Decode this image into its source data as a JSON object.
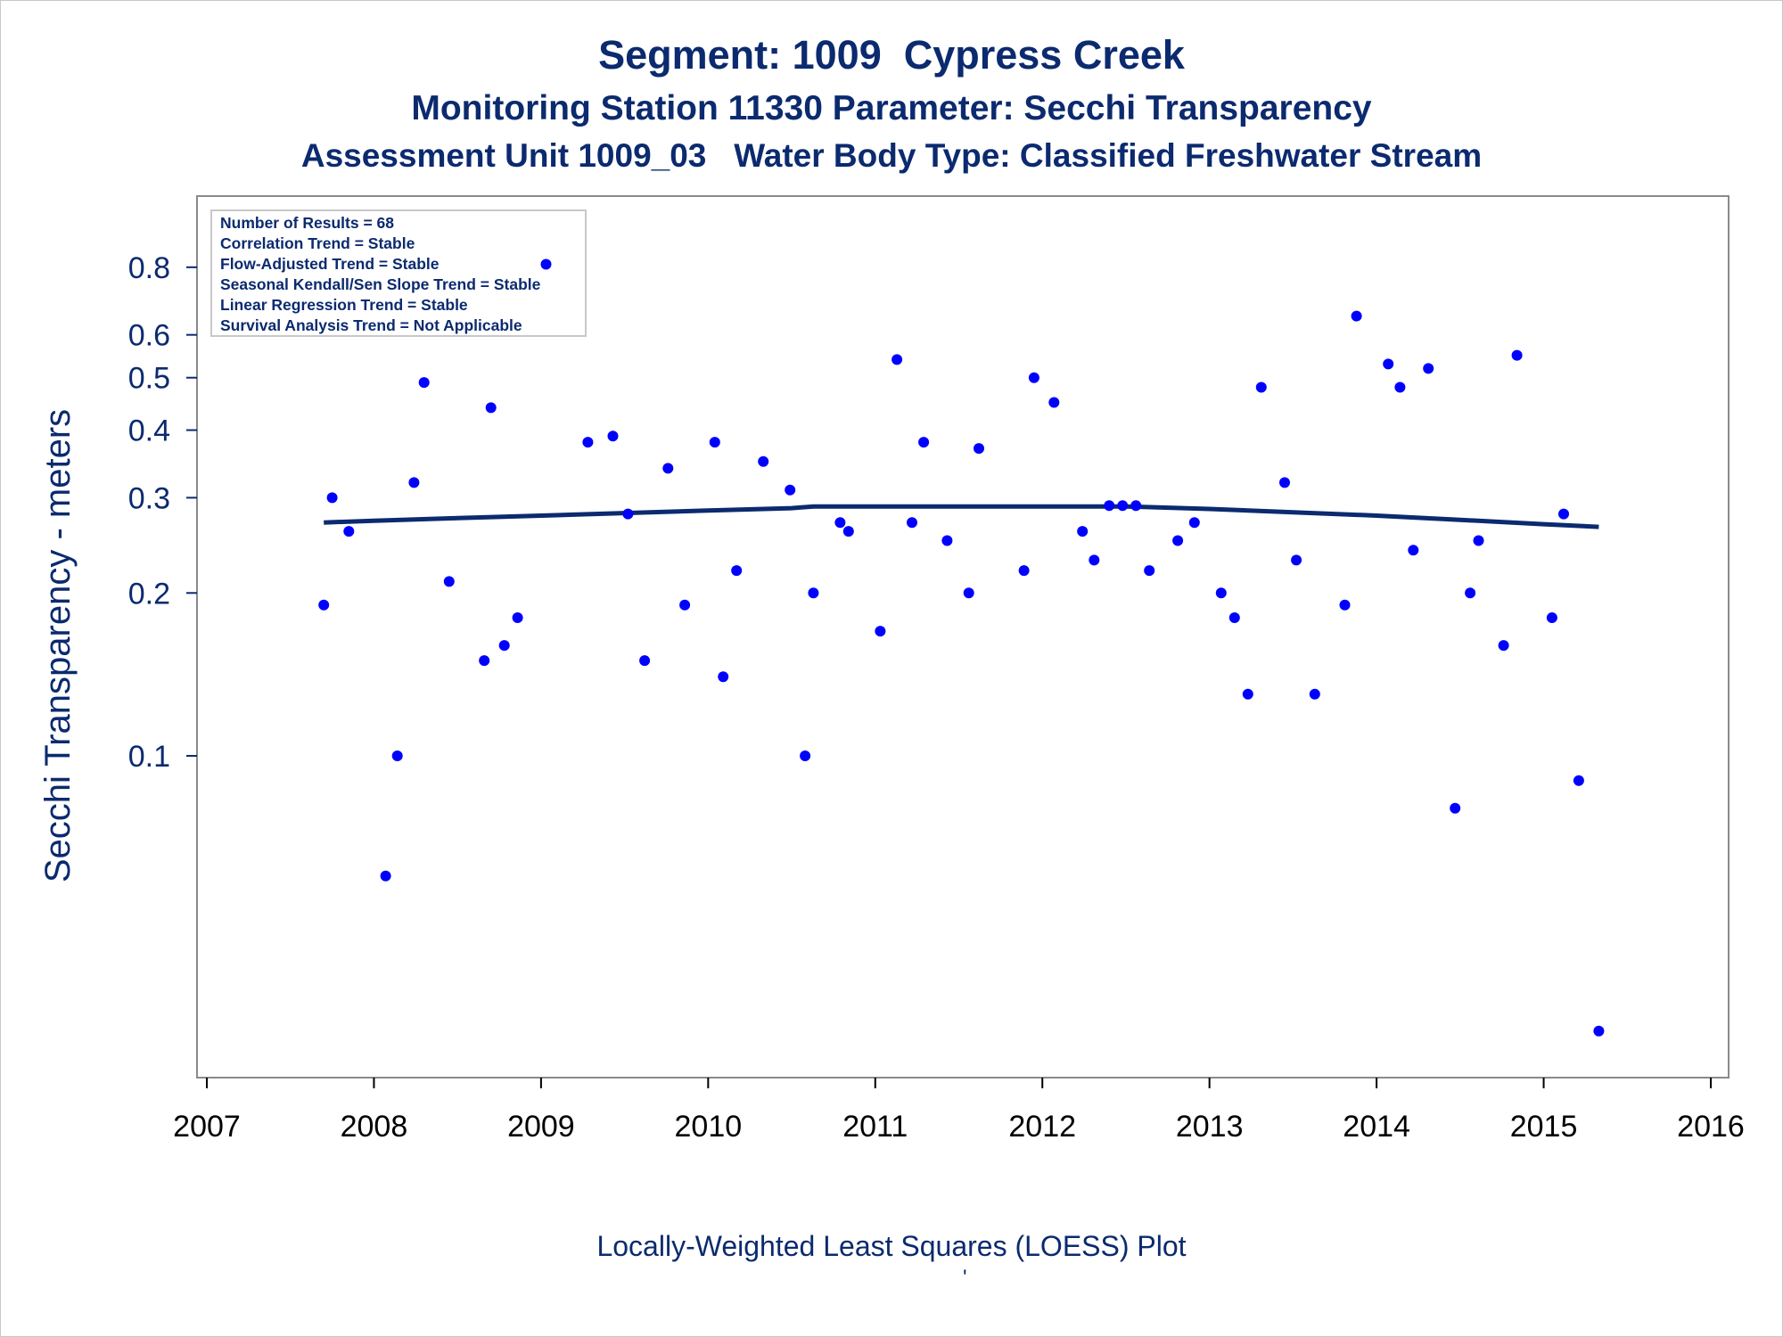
{
  "titles": {
    "line1": "Segment: 1009  Cypress Creek",
    "line2": "Monitoring Station 11330 Parameter: Secchi Transparency",
    "line3": "Assessment Unit 1009_03   Water Body Type: Classified Freshwater Stream"
  },
  "footer": {
    "caption": "Locally-Weighted Least Squares (LOESS) Plot",
    "mark": "'"
  },
  "chart_data": {
    "type": "scatter",
    "ylabel": "Secchi Transparency - meters",
    "xlabel": "",
    "x_ticks": [
      "2007",
      "2008",
      "2009",
      "2010",
      "2011",
      "2012",
      "2013",
      "2014",
      "2015",
      "2016"
    ],
    "xlim": [
      2007,
      2016
    ],
    "y_scale": "log",
    "ylim": [
      0.03,
      0.85
    ],
    "y_ticks": [
      {
        "value": 0.1,
        "label": "0.1"
      },
      {
        "value": 0.2,
        "label": "0.2"
      },
      {
        "value": 0.3,
        "label": "0.3"
      },
      {
        "value": 0.4,
        "label": "0.4"
      },
      {
        "value": 0.5,
        "label": "0.5"
      },
      {
        "value": 0.6,
        "label": "0.6"
      },
      {
        "value": 0.8,
        "label": "0.8"
      }
    ],
    "grid": false,
    "marker_color": "#0000ff",
    "line_color": "#0b2a6f",
    "stats_box": {
      "placement": "top-left",
      "lines": [
        "Number of Results = 68",
        "Correlation Trend = Stable",
        "Flow-Adjusted Trend = Stable",
        "Seasonal Kendall/Sen Slope Trend = Stable",
        "Linear Regression Trend = Stable",
        "Survival Analysis Trend = Not Applicable"
      ]
    },
    "points": [
      {
        "x": 2007.7,
        "y": 0.19
      },
      {
        "x": 2007.75,
        "y": 0.3
      },
      {
        "x": 2007.85,
        "y": 0.26
      },
      {
        "x": 2008.07,
        "y": 0.06
      },
      {
        "x": 2008.14,
        "y": 0.1
      },
      {
        "x": 2008.24,
        "y": 0.32
      },
      {
        "x": 2008.3,
        "y": 0.49
      },
      {
        "x": 2008.45,
        "y": 0.21
      },
      {
        "x": 2008.66,
        "y": 0.15
      },
      {
        "x": 2008.7,
        "y": 0.44
      },
      {
        "x": 2008.78,
        "y": 0.16
      },
      {
        "x": 2008.86,
        "y": 0.18
      },
      {
        "x": 2009.03,
        "y": 0.81
      },
      {
        "x": 2009.28,
        "y": 0.38
      },
      {
        "x": 2009.43,
        "y": 0.39
      },
      {
        "x": 2009.52,
        "y": 0.28
      },
      {
        "x": 2009.62,
        "y": 0.15
      },
      {
        "x": 2009.76,
        "y": 0.34
      },
      {
        "x": 2009.86,
        "y": 0.19
      },
      {
        "x": 2010.04,
        "y": 0.38
      },
      {
        "x": 2010.09,
        "y": 0.14
      },
      {
        "x": 2010.17,
        "y": 0.22
      },
      {
        "x": 2010.33,
        "y": 0.35
      },
      {
        "x": 2010.49,
        "y": 0.31
      },
      {
        "x": 2010.58,
        "y": 0.1
      },
      {
        "x": 2010.63,
        "y": 0.2
      },
      {
        "x": 2010.79,
        "y": 0.27
      },
      {
        "x": 2010.84,
        "y": 0.26
      },
      {
        "x": 2011.03,
        "y": 0.17
      },
      {
        "x": 2011.13,
        "y": 0.54
      },
      {
        "x": 2011.22,
        "y": 0.27
      },
      {
        "x": 2011.29,
        "y": 0.38
      },
      {
        "x": 2011.43,
        "y": 0.25
      },
      {
        "x": 2011.56,
        "y": 0.2
      },
      {
        "x": 2011.62,
        "y": 0.37
      },
      {
        "x": 2011.89,
        "y": 0.22
      },
      {
        "x": 2011.95,
        "y": 0.5
      },
      {
        "x": 2012.07,
        "y": 0.45
      },
      {
        "x": 2012.24,
        "y": 0.26
      },
      {
        "x": 2012.31,
        "y": 0.23
      },
      {
        "x": 2012.4,
        "y": 0.29
      },
      {
        "x": 2012.48,
        "y": 0.29
      },
      {
        "x": 2012.56,
        "y": 0.29
      },
      {
        "x": 2012.64,
        "y": 0.22
      },
      {
        "x": 2012.81,
        "y": 0.25
      },
      {
        "x": 2012.91,
        "y": 0.27
      },
      {
        "x": 2013.07,
        "y": 0.2
      },
      {
        "x": 2013.15,
        "y": 0.18
      },
      {
        "x": 2013.23,
        "y": 0.13
      },
      {
        "x": 2013.31,
        "y": 0.48
      },
      {
        "x": 2013.45,
        "y": 0.32
      },
      {
        "x": 2013.52,
        "y": 0.23
      },
      {
        "x": 2013.63,
        "y": 0.13
      },
      {
        "x": 2013.81,
        "y": 0.19
      },
      {
        "x": 2013.88,
        "y": 0.65
      },
      {
        "x": 2014.07,
        "y": 0.53
      },
      {
        "x": 2014.14,
        "y": 0.48
      },
      {
        "x": 2014.22,
        "y": 0.24
      },
      {
        "x": 2014.31,
        "y": 0.52
      },
      {
        "x": 2014.47,
        "y": 0.08
      },
      {
        "x": 2014.56,
        "y": 0.2
      },
      {
        "x": 2014.61,
        "y": 0.25
      },
      {
        "x": 2014.76,
        "y": 0.16
      },
      {
        "x": 2014.84,
        "y": 0.55
      },
      {
        "x": 2015.05,
        "y": 0.18
      },
      {
        "x": 2015.12,
        "y": 0.28
      },
      {
        "x": 2015.21,
        "y": 0.09
      },
      {
        "x": 2015.33,
        "y": 0.031
      }
    ],
    "loess_line": [
      {
        "x": 2007.7,
        "y": 0.27
      },
      {
        "x": 2008.0,
        "y": 0.272
      },
      {
        "x": 2008.5,
        "y": 0.275
      },
      {
        "x": 2009.0,
        "y": 0.278
      },
      {
        "x": 2009.5,
        "y": 0.281
      },
      {
        "x": 2010.0,
        "y": 0.284
      },
      {
        "x": 2010.5,
        "y": 0.287
      },
      {
        "x": 2010.63,
        "y": 0.289
      },
      {
        "x": 2011.0,
        "y": 0.289
      },
      {
        "x": 2011.5,
        "y": 0.289
      },
      {
        "x": 2012.0,
        "y": 0.289
      },
      {
        "x": 2012.5,
        "y": 0.289
      },
      {
        "x": 2013.0,
        "y": 0.286
      },
      {
        "x": 2013.5,
        "y": 0.282
      },
      {
        "x": 2014.0,
        "y": 0.278
      },
      {
        "x": 2014.5,
        "y": 0.273
      },
      {
        "x": 2015.0,
        "y": 0.268
      },
      {
        "x": 2015.33,
        "y": 0.265
      }
    ]
  }
}
